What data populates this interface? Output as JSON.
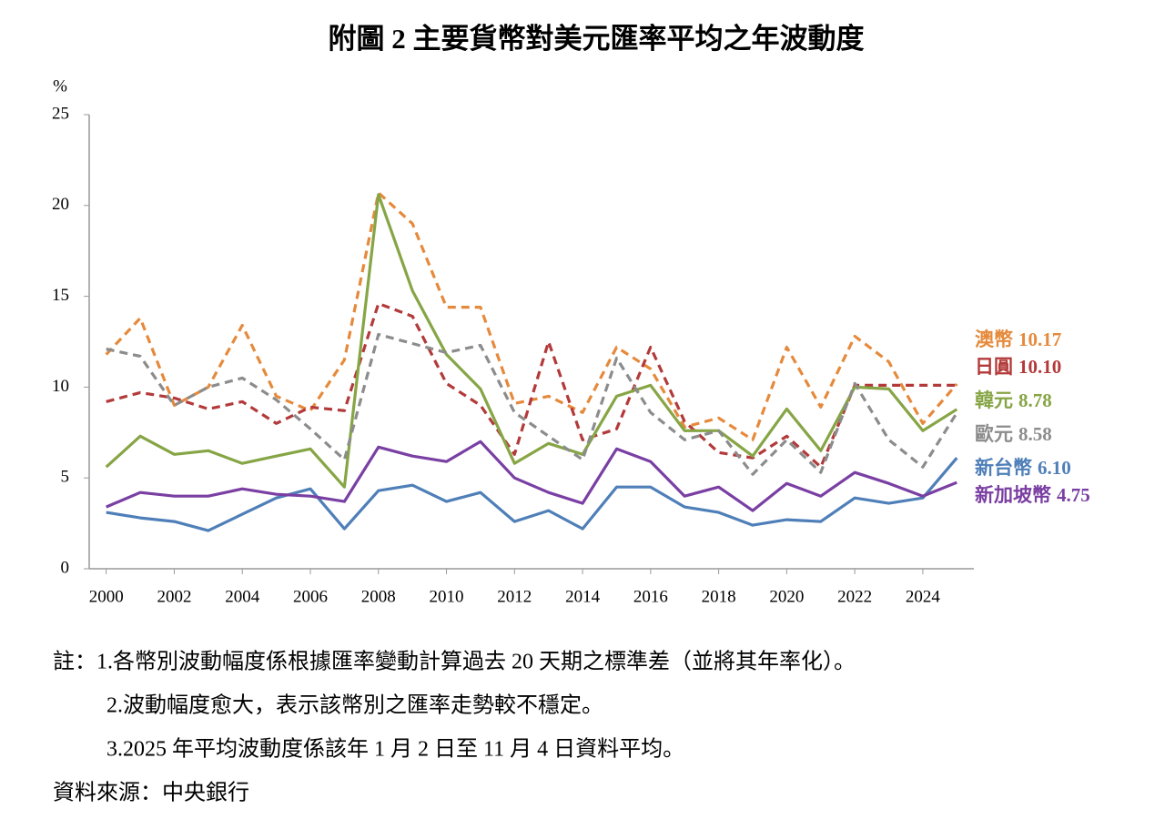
{
  "chart_data": {
    "type": "line",
    "title": "附圖 2  主要貨幣對美元匯率平均之年波動度",
    "y_unit": "%",
    "x": [
      2000,
      2001,
      2002,
      2003,
      2004,
      2005,
      2006,
      2007,
      2008,
      2009,
      2010,
      2011,
      2012,
      2013,
      2014,
      2015,
      2016,
      2017,
      2018,
      2019,
      2020,
      2021,
      2022,
      2023,
      2024,
      2025
    ],
    "xlim": [
      1999.5,
      2025.5
    ],
    "xticks": [
      2000,
      2002,
      2004,
      2006,
      2008,
      2010,
      2012,
      2014,
      2016,
      2018,
      2020,
      2022,
      2024
    ],
    "ylim": [
      0,
      25
    ],
    "yticks": [
      0,
      5,
      10,
      15,
      20,
      25
    ],
    "series": [
      {
        "name": "澳幣",
        "color": "#e58a3c",
        "dashed": true,
        "values": [
          11.8,
          13.8,
          9.0,
          10.0,
          13.4,
          9.5,
          8.7,
          11.5,
          20.7,
          19.0,
          14.4,
          14.4,
          9.1,
          9.5,
          8.6,
          12.2,
          11.0,
          7.8,
          8.3,
          7.1,
          12.2,
          8.9,
          12.8,
          11.4,
          8.0,
          10.17
        ],
        "value_labels": [
          null,
          null,
          null,
          null,
          null,
          null,
          null,
          null,
          null,
          null,
          null,
          null,
          null,
          null,
          null,
          null,
          null,
          null,
          null,
          null,
          null,
          null,
          null,
          null,
          null,
          "10.17"
        ]
      },
      {
        "name": "日圓",
        "color": "#b33a3a",
        "dashed": true,
        "values": [
          9.2,
          9.7,
          9.4,
          8.8,
          9.2,
          8.0,
          8.9,
          8.7,
          14.6,
          13.9,
          10.2,
          9.0,
          6.3,
          12.5,
          7.1,
          7.7,
          12.2,
          8.1,
          6.4,
          6.1,
          7.3,
          5.6,
          10.1,
          10.1,
          10.1,
          10.1
        ],
        "value_labels": [
          null,
          null,
          null,
          null,
          null,
          null,
          null,
          null,
          null,
          null,
          null,
          null,
          null,
          null,
          null,
          null,
          null,
          null,
          null,
          null,
          null,
          null,
          null,
          null,
          null,
          "10.10"
        ]
      },
      {
        "name": "韓元",
        "color": "#86a545",
        "dashed": false,
        "values": [
          5.6,
          7.3,
          6.3,
          6.5,
          5.8,
          6.2,
          6.6,
          4.5,
          20.6,
          15.3,
          11.8,
          9.9,
          5.8,
          6.9,
          6.3,
          9.5,
          10.1,
          7.6,
          7.6,
          6.2,
          8.8,
          6.5,
          10.0,
          9.9,
          7.6,
          8.78
        ],
        "value_labels": [
          null,
          null,
          null,
          null,
          null,
          null,
          null,
          null,
          null,
          null,
          null,
          null,
          null,
          null,
          null,
          null,
          null,
          null,
          null,
          null,
          null,
          null,
          null,
          null,
          null,
          "8.78"
        ]
      },
      {
        "name": "歐元",
        "color": "#8c8c8c",
        "dashed": true,
        "values": [
          12.1,
          11.7,
          9.0,
          10.0,
          10.5,
          9.3,
          7.7,
          6.0,
          12.9,
          12.4,
          11.9,
          12.3,
          8.6,
          7.3,
          6.0,
          11.6,
          8.6,
          7.1,
          7.6,
          5.2,
          7.1,
          5.3,
          10.2,
          7.1,
          5.6,
          8.58
        ],
        "value_labels": [
          null,
          null,
          null,
          null,
          null,
          null,
          null,
          null,
          null,
          null,
          null,
          null,
          null,
          null,
          null,
          null,
          null,
          null,
          null,
          null,
          null,
          null,
          null,
          null,
          null,
          "8.58"
        ]
      },
      {
        "name": "新台幣",
        "color": "#4f7fb8",
        "dashed": false,
        "values": [
          3.1,
          2.8,
          2.6,
          2.1,
          3.0,
          3.9,
          4.4,
          2.2,
          4.3,
          4.6,
          3.7,
          4.2,
          2.6,
          3.2,
          2.2,
          4.5,
          4.5,
          3.4,
          3.1,
          2.4,
          2.7,
          2.6,
          3.9,
          3.6,
          3.9,
          6.1
        ],
        "value_labels": [
          null,
          null,
          null,
          null,
          null,
          null,
          null,
          null,
          null,
          null,
          null,
          null,
          null,
          null,
          null,
          null,
          null,
          null,
          null,
          null,
          null,
          null,
          null,
          null,
          null,
          "6.10"
        ]
      },
      {
        "name": "新加坡幣",
        "color": "#7a3fa3",
        "dashed": false,
        "values": [
          3.4,
          4.2,
          4.0,
          4.0,
          4.4,
          4.1,
          4.0,
          3.7,
          6.7,
          6.2,
          5.9,
          7.0,
          5.0,
          4.2,
          3.6,
          6.6,
          5.9,
          4.0,
          4.5,
          3.2,
          4.7,
          4.0,
          5.3,
          4.7,
          4.0,
          4.75
        ],
        "value_labels": [
          null,
          null,
          null,
          null,
          null,
          null,
          null,
          null,
          null,
          null,
          null,
          null,
          null,
          null,
          null,
          null,
          null,
          null,
          null,
          null,
          null,
          null,
          null,
          null,
          null,
          "4.75"
        ]
      }
    ],
    "notes": [
      "註：1.各幣別波動幅度係根據匯率變動計算過去 20 天期之標準差（並將其年率化）。",
      "2.波動幅度愈大，表示該幣別之匯率走勢較不穩定。",
      "3.2025 年平均波動度係該年 1 月 2 日至 11 月 4 日資料平均。"
    ],
    "source": "資料來源：中央銀行"
  }
}
